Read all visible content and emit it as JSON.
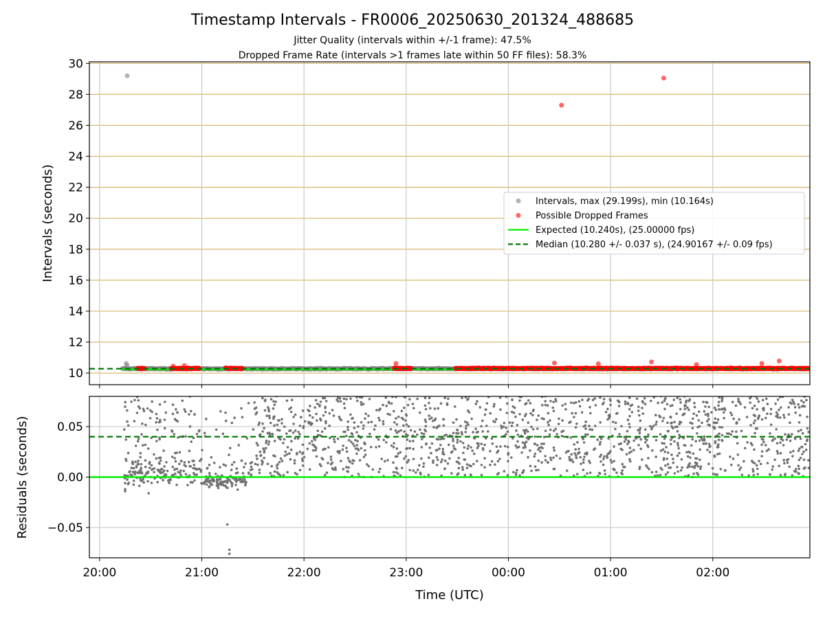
{
  "figure": {
    "title": "Timestamp Intervals - FR0006_20250630_201324_488685",
    "subtitle1": "Jitter Quality (intervals within +/-1 frame): 47.5%",
    "subtitle2": "Dropped Frame Rate (intervals >1 frames late within 50 FF files): 58.3%"
  },
  "chart_data": [
    {
      "type": "scatter",
      "panel": "intervals",
      "ylabel": "Intervals (seconds)",
      "xlim": [
        19.9,
        26.95
      ],
      "ylim": [
        9.25,
        30.1
      ],
      "yticks": [
        10,
        12,
        14,
        16,
        18,
        20,
        22,
        24,
        26,
        28,
        30
      ],
      "ytick_labels": [
        "10",
        "12",
        "14",
        "16",
        "18",
        "20",
        "22",
        "24",
        "26",
        "28",
        "30"
      ],
      "grid": "on",
      "legend_position": "center-right",
      "legend": [
        "Intervals, max (29.199s), min (10.164s)",
        "Possible Dropped Frames",
        "Expected (10.240s), (25.00000 fps)",
        "Median (10.280 +/- 0.037 s), (24.90167 +/- 0.09 fps)"
      ],
      "expected_interval": 10.24,
      "median_interval": 10.28,
      "series": [
        {
          "name": "Intervals, max (29.199s), min (10.164s)",
          "color": "#808080",
          "band": {
            "x_start": 20.22,
            "x_end": 26.95,
            "y_center": 10.28,
            "y_spread": 0.06
          },
          "points": [
            [
              20.27,
              29.2
            ],
            [
              20.26,
              10.62
            ],
            [
              20.27,
              10.5
            ]
          ]
        },
        {
          "name": "Possible Dropped Frames",
          "color": "#ff0000",
          "clusters": [
            {
              "x_start": 20.37,
              "x_end": 20.44
            },
            {
              "x_start": 20.7,
              "x_end": 20.98
            },
            {
              "x_start": 21.23,
              "x_end": 21.4
            },
            {
              "x_start": 22.88,
              "x_end": 23.05
            },
            {
              "x_start": 23.48,
              "x_end": 26.95
            }
          ],
          "points": [
            [
              24.52,
              27.3
            ],
            [
              25.52,
              29.05
            ],
            [
              22.9,
              10.62
            ],
            [
              24.45,
              10.65
            ],
            [
              25.4,
              10.72
            ],
            [
              26.65,
              10.78
            ],
            [
              24.88,
              10.6
            ],
            [
              26.48,
              10.62
            ],
            [
              20.72,
              10.45
            ],
            [
              20.83,
              10.48
            ],
            [
              25.84,
              10.55
            ]
          ]
        },
        {
          "name": "Expected (10.240s), (25.00000 fps)",
          "color": "#00ee00",
          "line": {
            "y": 10.24,
            "x_start": 20.22
          }
        },
        {
          "name": "Median (10.280 +/- 0.037 s), (24.90167 +/- 0.09 fps)",
          "color": "#007a00",
          "line": {
            "y": 10.28,
            "style": "dashed"
          }
        }
      ]
    },
    {
      "type": "scatter",
      "panel": "residuals",
      "xlabel": "Time (UTC)",
      "ylabel": "Residuals (seconds)",
      "xlim": [
        19.9,
        26.95
      ],
      "ylim": [
        -0.08,
        0.08
      ],
      "yticks": [
        -0.05,
        0.0,
        0.05
      ],
      "ytick_labels": [
        "−0.05",
        "0.00",
        "0.05"
      ],
      "xticks": [
        20,
        21,
        22,
        23,
        24,
        25,
        26
      ],
      "xtick_labels": [
        "20:00",
        "21:00",
        "22:00",
        "23:00",
        "00:00",
        "01:00",
        "02:00"
      ],
      "grid": "on",
      "expected_residual": 0.0,
      "median_residual": 0.04,
      "series": [
        {
          "name": "Residuals",
          "color": "#707070",
          "points": [
            [
              21.25,
              -0.047
            ],
            [
              21.27,
              -0.072
            ],
            [
              21.27,
              -0.076
            ],
            [
              20.25,
              -0.012
            ],
            [
              20.25,
              -0.014
            ],
            [
              20.48,
              -0.016
            ],
            [
              20.38,
              0.076
            ],
            [
              20.47,
              0.068
            ],
            [
              20.27,
              0.055
            ]
          ]
        },
        {
          "name": "Expected",
          "color": "#00ee00",
          "line": {
            "y": 0.0
          }
        },
        {
          "name": "Median",
          "color": "#007a00",
          "line": {
            "y": 0.04,
            "style": "dashed"
          }
        }
      ]
    }
  ]
}
